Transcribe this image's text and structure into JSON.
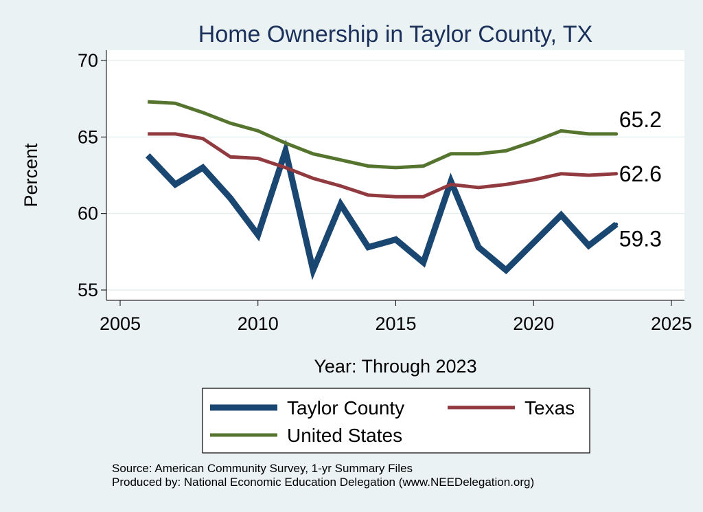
{
  "chart_data": {
    "type": "line",
    "title": "Home Ownership in Taylor County, TX",
    "xlabel": "Year: Through 2023",
    "ylabel": "Percent",
    "xlim": [
      2005,
      2025
    ],
    "ylim": [
      55,
      70
    ],
    "xticks": [
      2005,
      2010,
      2015,
      2020,
      2025
    ],
    "yticks": [
      55,
      60,
      65,
      70
    ],
    "grid": true,
    "legend_position": "bottom",
    "x": [
      2006,
      2007,
      2008,
      2009,
      2010,
      2011,
      2012,
      2013,
      2014,
      2015,
      2016,
      2017,
      2018,
      2019,
      2020,
      2021,
      2022,
      2023
    ],
    "series": [
      {
        "name": "Taylor County",
        "color": "#1a4771",
        "values": [
          63.8,
          61.9,
          63.0,
          61.0,
          58.6,
          64.1,
          56.3,
          60.6,
          57.8,
          58.3,
          56.8,
          62.1,
          57.8,
          56.3,
          58.1,
          59.9,
          57.9,
          59.3
        ],
        "end_label": "59.3"
      },
      {
        "name": "Texas",
        "color": "#913a40",
        "values": [
          65.2,
          65.2,
          64.9,
          63.7,
          63.6,
          63.0,
          62.3,
          61.8,
          61.2,
          61.1,
          61.1,
          61.9,
          61.7,
          61.9,
          62.2,
          62.6,
          62.5,
          62.6
        ],
        "end_label": "62.6"
      },
      {
        "name": "United States",
        "color": "#55752f",
        "values": [
          67.3,
          67.2,
          66.6,
          65.9,
          65.4,
          64.6,
          63.9,
          63.5,
          63.1,
          63.0,
          63.1,
          63.9,
          63.9,
          64.1,
          64.7,
          65.4,
          65.2,
          65.2
        ],
        "end_label": "65.2"
      }
    ]
  },
  "notes": {
    "source": "Source: American Community Survey, 1-yr Summary Files",
    "produced": "Produced by: National Economic Education Delegation (www.NEEDelegation.org)"
  },
  "colors": {
    "background": "#eaf2f3",
    "plot_background": "#ffffff",
    "title": "#1a2f5a"
  }
}
